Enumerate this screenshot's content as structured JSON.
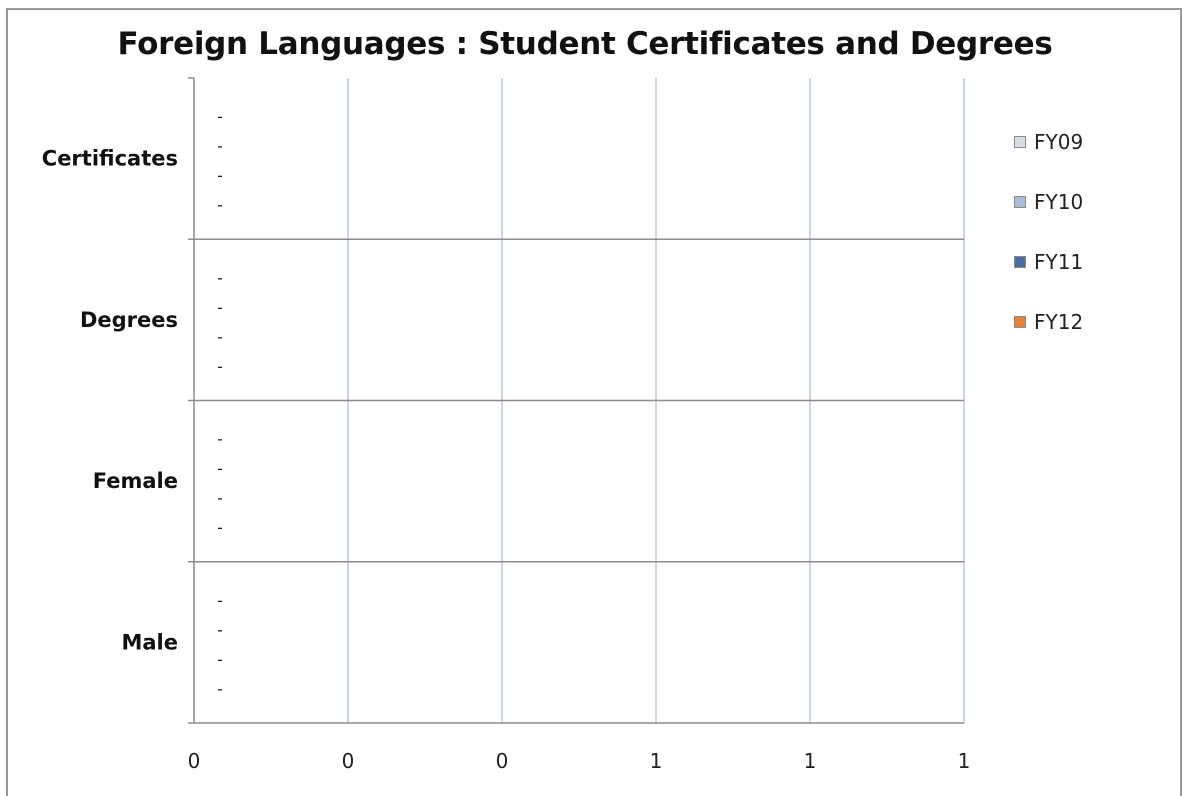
{
  "chart_data": {
    "type": "bar",
    "orientation": "horizontal",
    "title": "Foreign Languages : Student Certificates and Degrees",
    "categories": [
      "Certificates",
      "Degrees",
      "Female",
      "Male"
    ],
    "x_tick_labels": [
      "0",
      "0",
      "0",
      "1",
      "1",
      "1"
    ],
    "series": [
      {
        "name": "FY09",
        "values": [
          0,
          0,
          0,
          0
        ],
        "data_labels": [
          "-",
          "-",
          "-",
          "-"
        ],
        "color": "#d6dce6"
      },
      {
        "name": "FY10",
        "values": [
          0,
          0,
          0,
          0
        ],
        "data_labels": [
          "-",
          "-",
          "-",
          "-"
        ],
        "color": "#a9bfd9"
      },
      {
        "name": "FY11",
        "values": [
          0,
          0,
          0,
          0
        ],
        "data_labels": [
          "-",
          "-",
          "-",
          "-"
        ],
        "color": "#4a6fa0"
      },
      {
        "name": "FY12",
        "values": [
          0,
          0,
          0,
          0
        ],
        "data_labels": [
          "-",
          "-",
          "-",
          "-"
        ],
        "color": "#e8813a"
      }
    ],
    "xlim": [
      0,
      1
    ],
    "grid": true,
    "legend": "right"
  }
}
